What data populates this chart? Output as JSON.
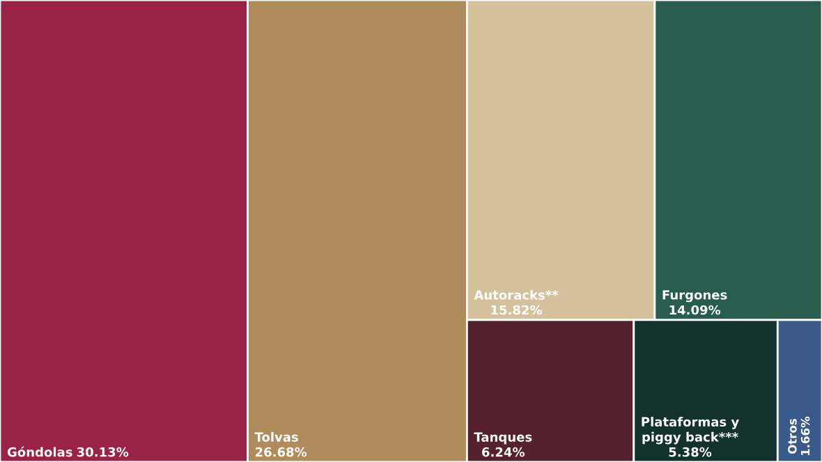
{
  "chart_data": {
    "type": "other",
    "categories": [
      "Góndolas",
      "Tolvas",
      "Autoracks**",
      "Furgones",
      "Tanques",
      "Plataformas y\npiggy back***",
      "Otros"
    ],
    "values": [
      30.13,
      26.68,
      15.82,
      14.09,
      6.24,
      5.38,
      1.66
    ],
    "value_labels": [
      "30.13%",
      "26.68%",
      "15.82%",
      "14.09%",
      "6.24%",
      "5.38%",
      "1.66%"
    ],
    "colors": [
      "#9b2247",
      "#b08b5b",
      "#d4c19c",
      "#285c4d",
      "#56212f",
      "#13322b",
      "#3a5a8c"
    ]
  }
}
